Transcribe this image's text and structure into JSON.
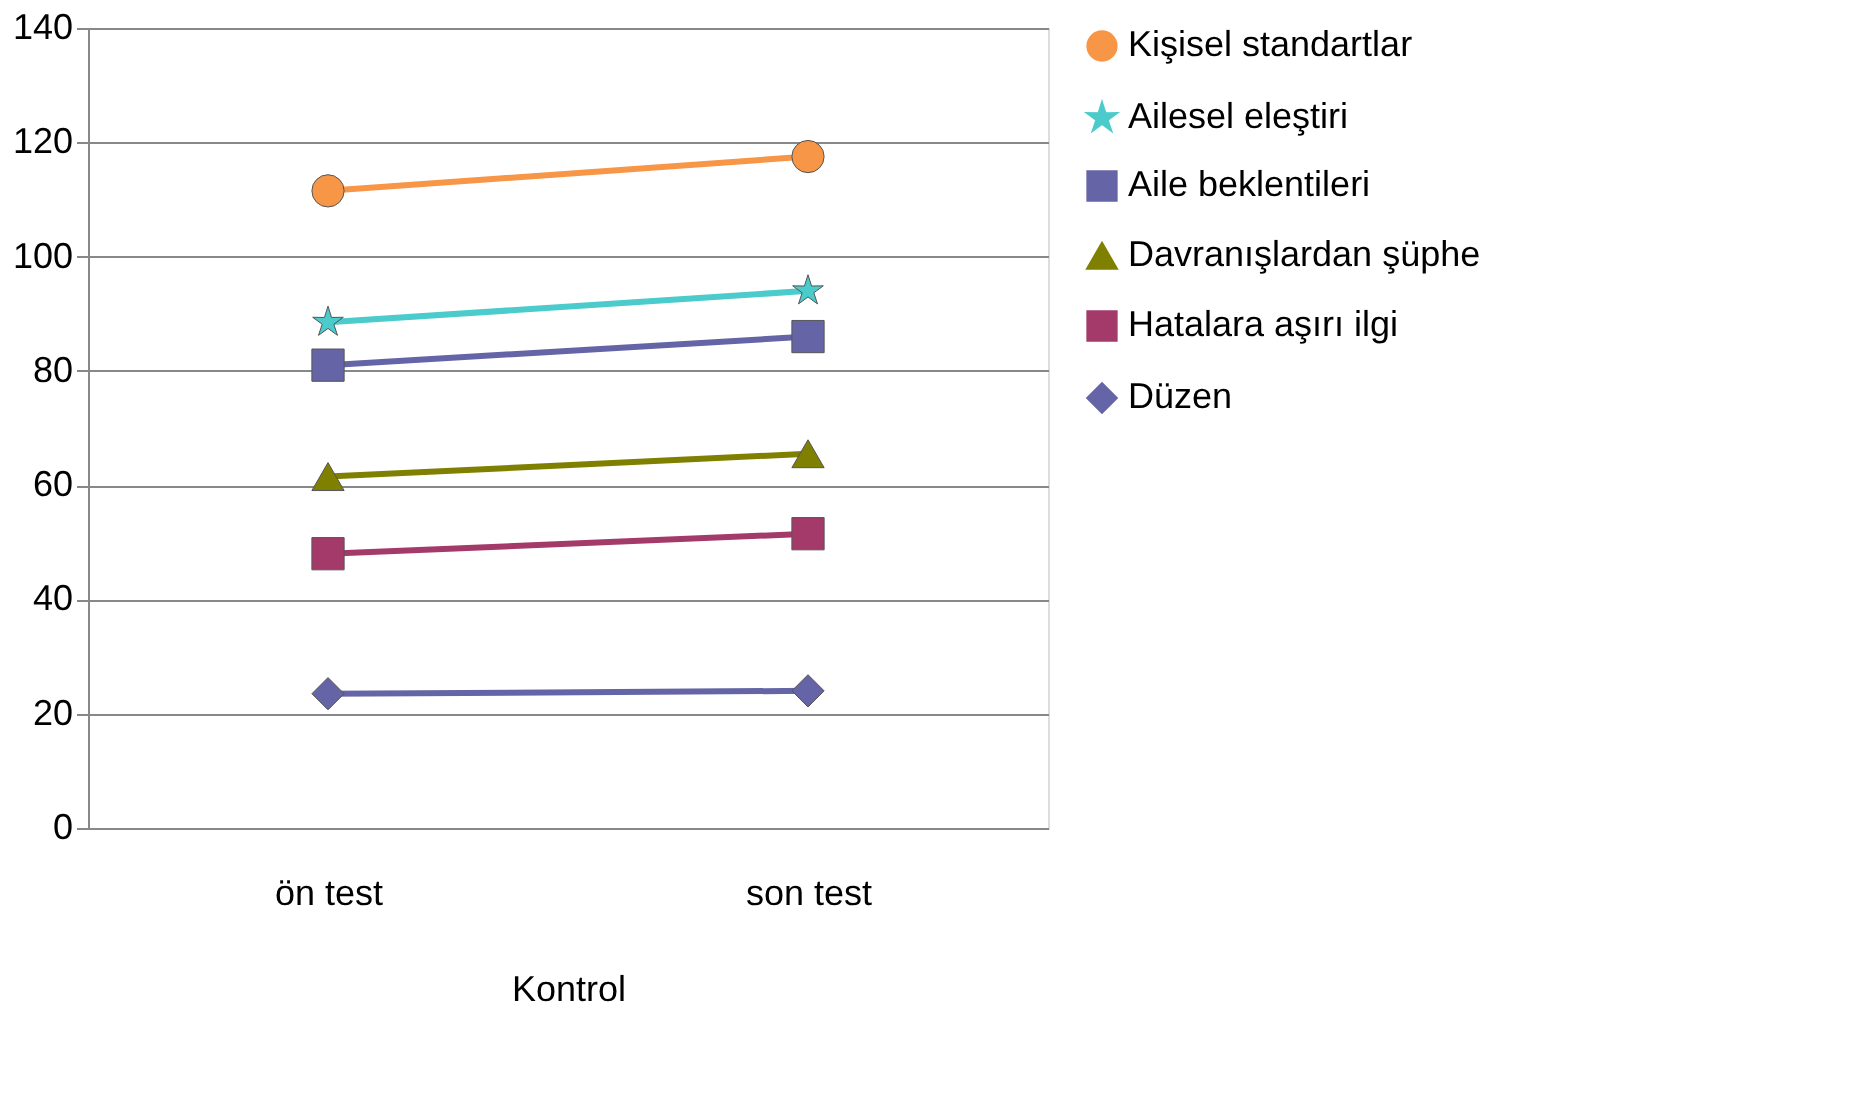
{
  "chart_data": {
    "type": "line",
    "xlabel": "Kontrol",
    "categories": [
      "ön test",
      "son test"
    ],
    "series": [
      {
        "name": "Kişisel standartlar",
        "color": "#f79646",
        "marker": "circle",
        "values": [
          111.5,
          117.5
        ]
      },
      {
        "name": "Ailesel eleştiri",
        "color": "#4bcbcb",
        "marker": "star",
        "values": [
          88.5,
          94
        ]
      },
      {
        "name": "Aile beklentileri",
        "color": "#6464a6",
        "marker": "square",
        "values": [
          81,
          86
        ]
      },
      {
        "name": "Davranışlardan şüphe",
        "color": "#808000",
        "marker": "triangle",
        "values": [
          61.5,
          65.5
        ]
      },
      {
        "name": "Hatalara aşırı ilgi",
        "color": "#a33a6a",
        "marker": "square",
        "values": [
          48,
          51.5
        ]
      },
      {
        "name": "Düzen",
        "color": "#6464a6",
        "marker": "diamond",
        "values": [
          23.5,
          24
        ]
      }
    ],
    "ylim": [
      0,
      140
    ],
    "yticks": [
      0,
      20,
      40,
      60,
      80,
      100,
      120,
      140
    ],
    "grid": "y",
    "legend": "right",
    "line_style": "solid"
  }
}
